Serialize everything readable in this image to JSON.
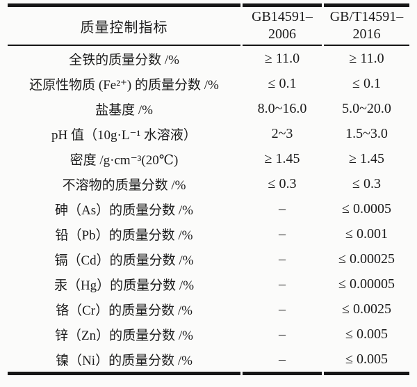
{
  "colors": {
    "background": "#fbfbfa",
    "text": "#1b1b1b",
    "rule": "#161616"
  },
  "table": {
    "header": {
      "indicator": "质量控制指标",
      "std2006_line1": "GB14591–",
      "std2006_line2": "2006",
      "std2016_line1": "GB/T14591–",
      "std2016_line2": "2016"
    },
    "rows": [
      {
        "label": "全铁的质量分数 /%",
        "v2006": "≥ 11.0",
        "v2016": "≥ 11.0"
      },
      {
        "label": "还原性物质 (Fe²⁺) 的质量分数 /%",
        "v2006": "≤ 0.1",
        "v2016": "≤ 0.1"
      },
      {
        "label": "盐基度 /%",
        "v2006": "8.0~16.0",
        "v2016": "5.0~20.0"
      },
      {
        "label": "pH 值（10g·L⁻¹ 水溶液）",
        "v2006": "2~3",
        "v2016": "1.5~3.0"
      },
      {
        "label": "密度 /g·cm⁻³(20℃)",
        "v2006": "≥ 1.45",
        "v2016": "≥ 1.45"
      },
      {
        "label": "不溶物的质量分数 /%",
        "v2006": "≤ 0.3",
        "v2016": "≤ 0.3"
      },
      {
        "label": "砷（As）的质量分数 /%",
        "v2006": "–",
        "v2016": "≤ 0.0005"
      },
      {
        "label": "铅（Pb）的质量分数 /%",
        "v2006": "–",
        "v2016": "≤ 0.001"
      },
      {
        "label": "镉（Cd）的质量分数 /%",
        "v2006": "–",
        "v2016": "≤ 0.00025"
      },
      {
        "label": "汞（Hg）的质量分数 /%",
        "v2006": "–",
        "v2016": "≤ 0.00005"
      },
      {
        "label": "铬（Cr）的质量分数 /%",
        "v2006": "–",
        "v2016": "≤ 0.0025"
      },
      {
        "label": "锌（Zn）的质量分数 /%",
        "v2006": "–",
        "v2016": "≤ 0.005"
      },
      {
        "label": "镍（Ni）的质量分数 /%",
        "v2006": "–",
        "v2016": "≤ 0.005"
      }
    ]
  }
}
